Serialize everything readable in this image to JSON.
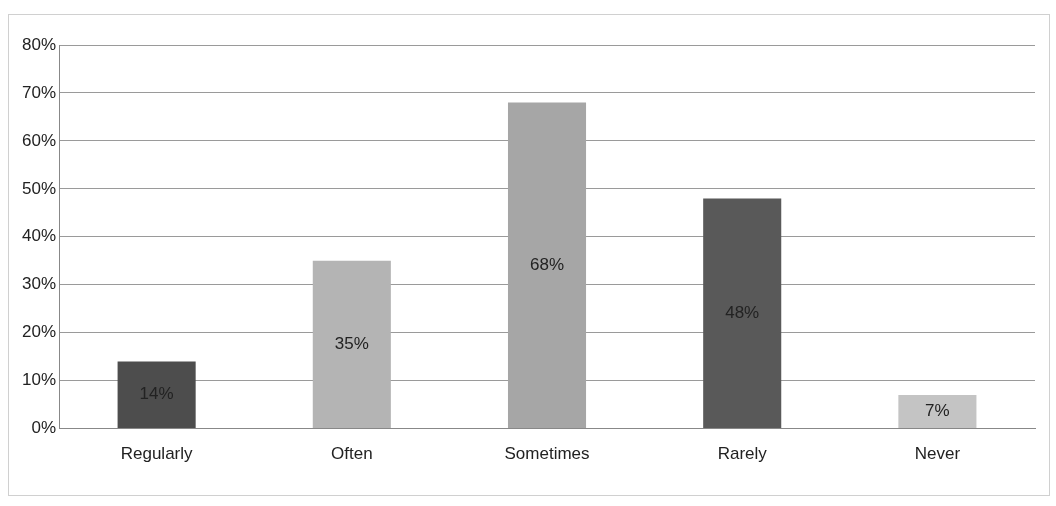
{
  "chart_data": {
    "type": "bar",
    "categories": [
      "Regularly",
      "Often",
      "Sometimes",
      "Rarely",
      "Never"
    ],
    "values": [
      14,
      35,
      68,
      48,
      7
    ],
    "colors": [
      "#4d4d4d",
      "#b4b4b4",
      "#a6a6a6",
      "#595959",
      "#c4c4c4"
    ],
    "value_labels": [
      "14%",
      "35%",
      "68%",
      "48%",
      "7%"
    ],
    "ylim": [
      0,
      80
    ],
    "yticks": [
      {
        "value": 0,
        "label": "0%"
      },
      {
        "value": 10,
        "label": "10%"
      },
      {
        "value": 20,
        "label": "20%"
      },
      {
        "value": 30,
        "label": "30%"
      },
      {
        "value": 40,
        "label": "40%"
      },
      {
        "value": 50,
        "label": "50%"
      },
      {
        "value": 60,
        "label": "60%"
      },
      {
        "value": 70,
        "label": "70%"
      },
      {
        "value": 80,
        "label": "80%"
      }
    ],
    "grid": "y",
    "legend": false
  }
}
